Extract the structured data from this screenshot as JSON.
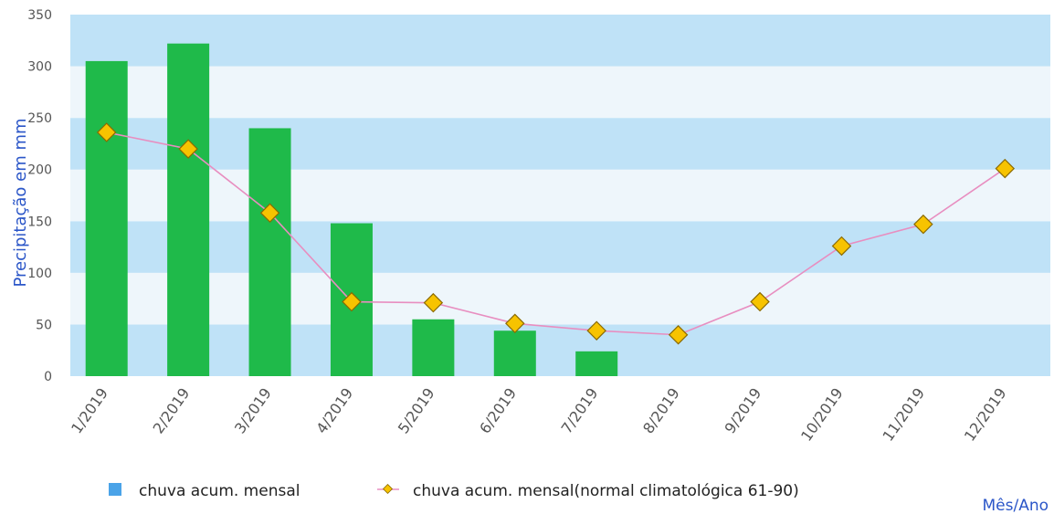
{
  "chart_data": {
    "type": "bar",
    "categories": [
      "1/2019",
      "2/2019",
      "3/2019",
      "4/2019",
      "5/2019",
      "6/2019",
      "7/2019",
      "8/2019",
      "9/2019",
      "10/2019",
      "11/2019",
      "12/2019"
    ],
    "series": [
      {
        "name": "chuva acum. mensal",
        "type": "bar",
        "color": "#1fba4a",
        "values": [
          305,
          322,
          240,
          148,
          55,
          44,
          24,
          null,
          null,
          null,
          null,
          null
        ]
      },
      {
        "name": "chuva acum. mensal(normal climatológica 61-90)",
        "type": "line",
        "color": "#e88ec0",
        "marker_color": "#f7c300",
        "values": [
          236,
          220,
          158,
          72,
          71,
          51,
          44,
          40,
          72,
          126,
          147,
          201
        ]
      }
    ],
    "ylabel": "Precipitação em mm",
    "xlabel": "Mês/Ano",
    "ylim": [
      0,
      350
    ],
    "yticks": [
      0,
      50,
      100,
      150,
      200,
      250,
      300,
      350
    ],
    "legend_position": "bottom",
    "legend_swatch_colors": [
      "#4aa3e8",
      "#f7c300"
    ],
    "band_colors": [
      "#bfe2f7",
      "#eef6fb"
    ]
  }
}
